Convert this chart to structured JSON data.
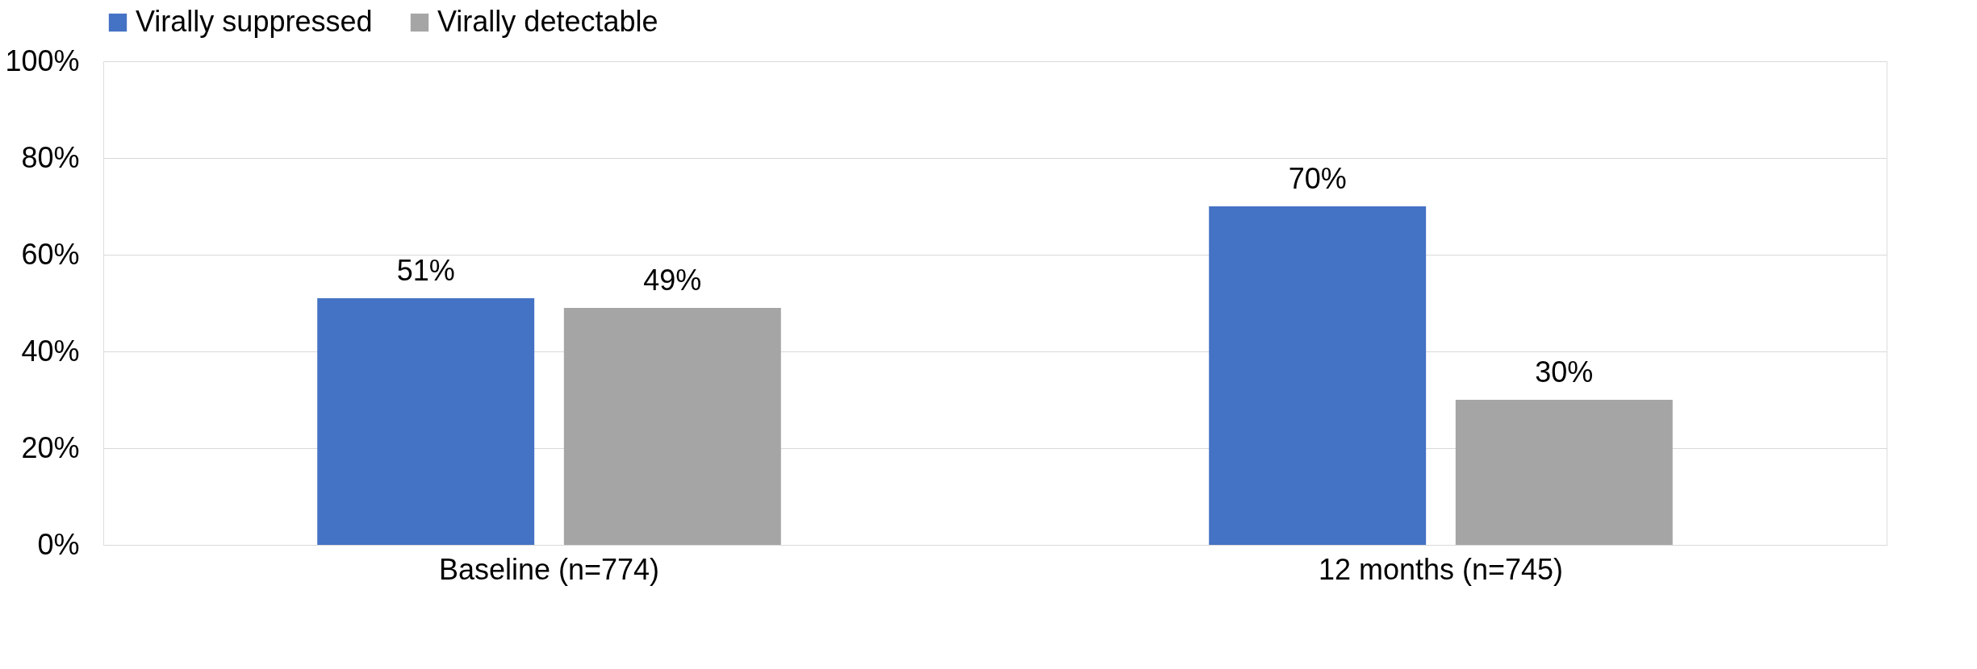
{
  "chart_data": {
    "type": "bar",
    "categories": [
      "Baseline (n=774)",
      "12 months (n=745)"
    ],
    "series": [
      {
        "name": "Virally suppressed",
        "color": "#4472c4",
        "values": [
          51,
          70
        ],
        "value_labels": [
          "51%",
          "70%"
        ]
      },
      {
        "name": "Virally detectable",
        "color": "#a5a5a5",
        "values": [
          49,
          30
        ],
        "value_labels": [
          "49%",
          "30%"
        ]
      }
    ],
    "ylim": [
      0,
      100
    ],
    "yticks": [
      {
        "value": 0,
        "label": "0%"
      },
      {
        "value": 20,
        "label": "20%"
      },
      {
        "value": 40,
        "label": "40%"
      },
      {
        "value": 60,
        "label": "60%"
      },
      {
        "value": 80,
        "label": "80%"
      },
      {
        "value": 100,
        "label": "100%"
      }
    ],
    "grid": "y",
    "legend": "top"
  }
}
